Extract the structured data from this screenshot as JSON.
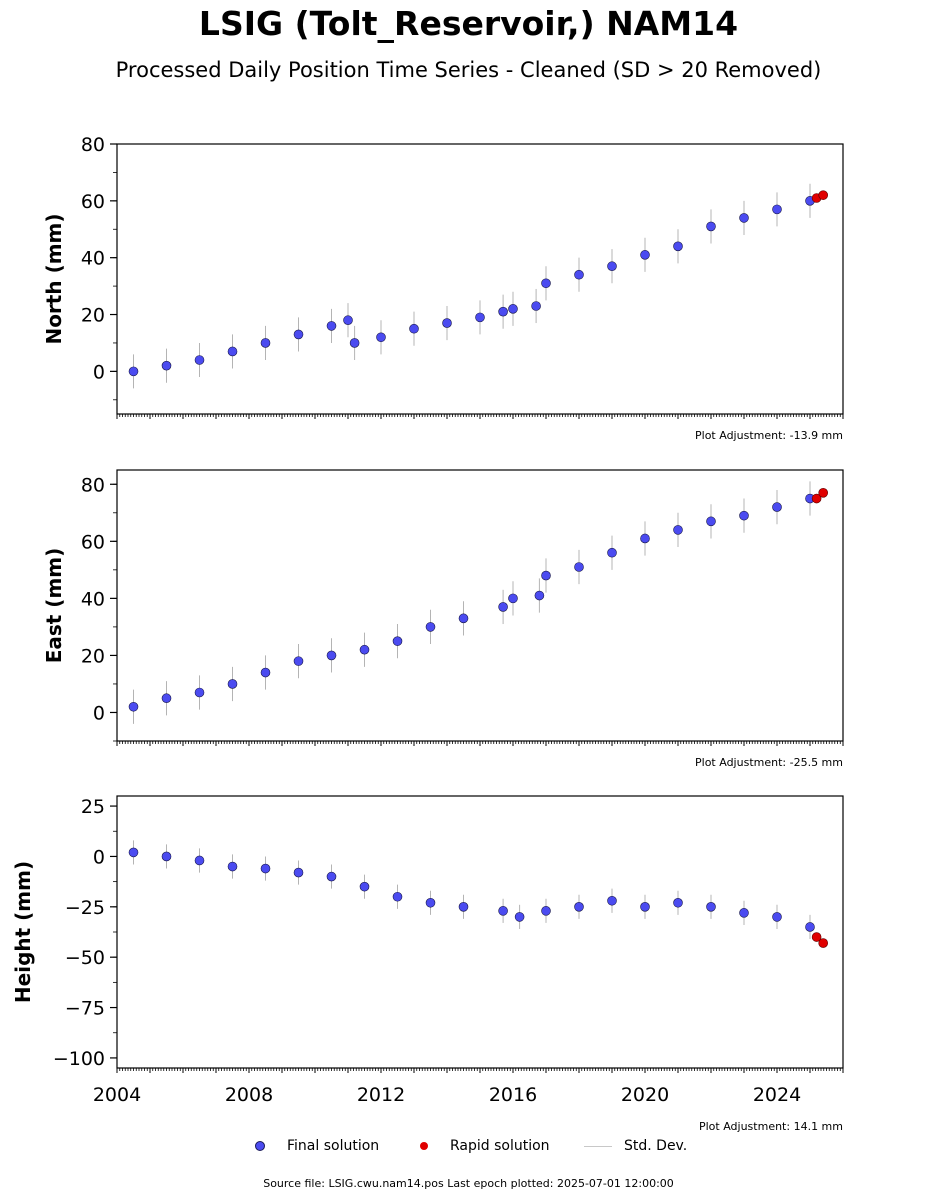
{
  "title": "LSIG (Tolt_Reservoir,) NAM14",
  "subtitle": "Processed Daily Position Time Series - Cleaned (SD > 20 Removed)",
  "footer": "Source file: LSIG.cwu.nam14.pos  Last epoch plotted: 2025-07-01 12:00:00",
  "legend": {
    "final": "Final solution",
    "rapid": "Rapid solution",
    "std": "Std. Dev."
  },
  "colors": {
    "final": "#4b4bf0",
    "rapid": "#e00000",
    "std": "#b4b4b4"
  },
  "chart_data": [
    {
      "type": "scatter",
      "ylabel": "North (mm)",
      "adjustment": "Plot Adjustment: -13.9 mm",
      "xlim": [
        2004,
        2026
      ],
      "ylim": [
        -15,
        80
      ],
      "yticks": [
        0,
        20,
        40,
        60,
        80
      ],
      "ytick_labels": [
        "0",
        "20",
        "40",
        "60",
        "80"
      ],
      "series": [
        {
          "x": [
            2004.5,
            2005.5,
            2006.5,
            2007.5,
            2008.5,
            2009.5,
            2010.5,
            2011.0,
            2011.2,
            2012.0,
            2013.0,
            2014.0,
            2015.0,
            2015.7,
            2016.0,
            2016.7,
            2017.0,
            2018.0,
            2019.0,
            2020.0,
            2021.0,
            2022.0,
            2023.0,
            2024.0,
            2025.0
          ],
          "y": [
            0,
            2,
            4,
            7,
            10,
            13,
            16,
            18,
            10,
            12,
            15,
            17,
            19,
            21,
            22,
            23,
            31,
            34,
            37,
            41,
            44,
            51,
            54,
            57,
            60
          ]
        },
        {
          "x": [
            2025.2,
            2025.4
          ],
          "y": [
            61,
            62
          ]
        }
      ]
    },
    {
      "type": "scatter",
      "ylabel": "East (mm)",
      "adjustment": "Plot Adjustment: -25.5 mm",
      "xlim": [
        2004,
        2026
      ],
      "ylim": [
        -10,
        85
      ],
      "yticks": [
        0,
        20,
        40,
        60,
        80
      ],
      "ytick_labels": [
        "0",
        "20",
        "40",
        "60",
        "80"
      ],
      "series": [
        {
          "x": [
            2004.5,
            2005.5,
            2006.5,
            2007.5,
            2008.5,
            2009.5,
            2010.5,
            2011.5,
            2012.5,
            2013.5,
            2014.5,
            2015.7,
            2016.0,
            2016.8,
            2017.0,
            2018.0,
            2019.0,
            2020.0,
            2021.0,
            2022.0,
            2023.0,
            2024.0,
            2025.0
          ],
          "y": [
            2,
            5,
            7,
            10,
            14,
            18,
            20,
            22,
            25,
            30,
            33,
            37,
            40,
            41,
            48,
            51,
            56,
            61,
            64,
            67,
            69,
            72,
            75
          ]
        },
        {
          "x": [
            2025.2,
            2025.4
          ],
          "y": [
            75,
            77
          ]
        }
      ]
    },
    {
      "type": "scatter",
      "ylabel": "Height (mm)",
      "adjustment": "Plot Adjustment: 14.1 mm",
      "xlim": [
        2004,
        2026
      ],
      "ylim": [
        -105,
        30
      ],
      "yticks": [
        25,
        0,
        -25,
        -50,
        -75,
        -100
      ],
      "ytick_labels": [
        "25",
        "0",
        "−25",
        "−50",
        "−75",
        "−100"
      ],
      "xticks": [
        2004,
        2008,
        2012,
        2016,
        2020,
        2024
      ],
      "xtick_labels": [
        "2004",
        "2008",
        "2012",
        "2016",
        "2020",
        "2024"
      ],
      "series": [
        {
          "x": [
            2004.5,
            2005.5,
            2006.5,
            2007.5,
            2008.5,
            2009.5,
            2010.5,
            2011.5,
            2012.5,
            2013.5,
            2014.5,
            2015.7,
            2016.2,
            2017.0,
            2018.0,
            2019.0,
            2020.0,
            2021.0,
            2022.0,
            2023.0,
            2024.0,
            2025.0
          ],
          "y": [
            2,
            0,
            -2,
            -5,
            -6,
            -8,
            -10,
            -15,
            -20,
            -23,
            -25,
            -27,
            -30,
            -27,
            -25,
            -22,
            -25,
            -23,
            -25,
            -28,
            -30,
            -35
          ]
        },
        {
          "x": [
            2025.2,
            2025.4
          ],
          "y": [
            -40,
            -43
          ]
        }
      ]
    }
  ]
}
